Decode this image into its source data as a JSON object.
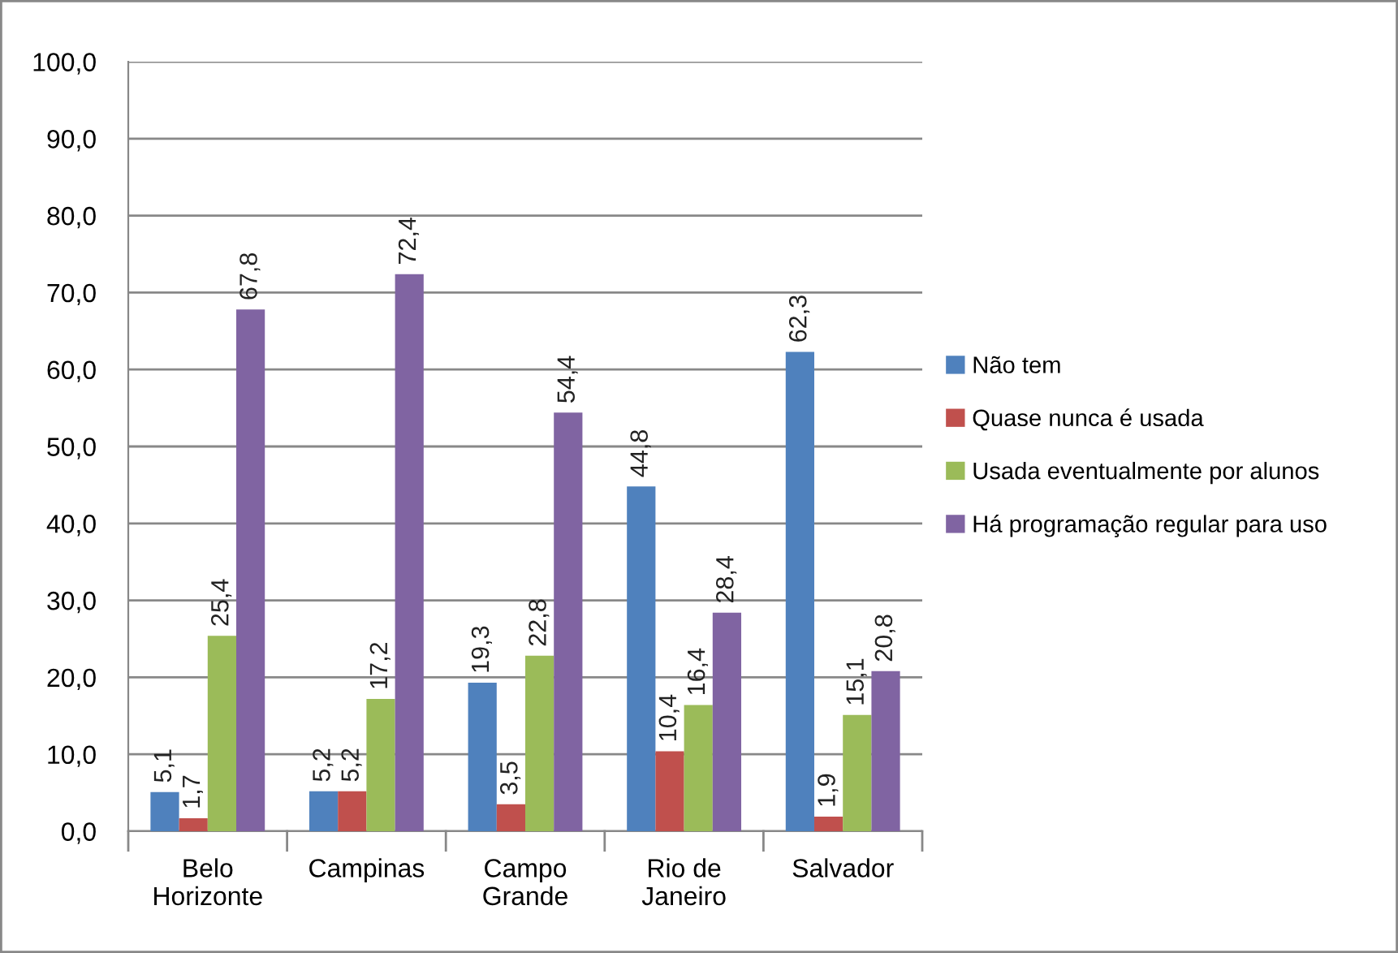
{
  "chart_data": {
    "type": "bar",
    "categories": [
      "Belo\nHorizonte",
      "Campinas",
      "Campo\nGrande",
      "Rio de\nJaneiro",
      "Salvador"
    ],
    "series": [
      {
        "name": "Não tem",
        "color": "#4f81bd",
        "values": [
          5.1,
          5.2,
          19.3,
          44.8,
          62.3
        ],
        "value_labels": [
          "5,1",
          "5,2",
          "19,3",
          "44,8",
          "62,3"
        ]
      },
      {
        "name": "Quase nunca é usada",
        "color": "#c0504d",
        "values": [
          1.7,
          5.2,
          3.5,
          10.4,
          1.9
        ],
        "value_labels": [
          "1,7",
          "5,2",
          "3,5",
          "10,4",
          "1,9"
        ]
      },
      {
        "name": "Usada eventualmente por alunos",
        "color": "#9bbb59",
        "values": [
          25.4,
          17.2,
          22.8,
          16.4,
          15.1
        ],
        "value_labels": [
          "25,4",
          "17,2",
          "22,8",
          "16,4",
          "15,1"
        ]
      },
      {
        "name": "Há programação regular para uso",
        "color": "#8064a2",
        "values": [
          67.8,
          72.4,
          54.4,
          28.4,
          20.8
        ],
        "value_labels": [
          "67,8",
          "72,4",
          "54,4",
          "28,4",
          "20,8"
        ]
      }
    ],
    "ylim": [
      0,
      100
    ],
    "yticks": [
      {
        "value": 0,
        "label": "0,0"
      },
      {
        "value": 10,
        "label": "10,0"
      },
      {
        "value": 20,
        "label": "20,0"
      },
      {
        "value": 30,
        "label": "30,0"
      },
      {
        "value": 40,
        "label": "40,0"
      },
      {
        "value": 50,
        "label": "50,0"
      },
      {
        "value": 60,
        "label": "60,0"
      },
      {
        "value": 70,
        "label": "70,0"
      },
      {
        "value": 80,
        "label": "80,0"
      },
      {
        "value": 90,
        "label": "90,0"
      },
      {
        "value": 100,
        "label": "100,0"
      }
    ],
    "grid": "y",
    "legend": "right"
  }
}
